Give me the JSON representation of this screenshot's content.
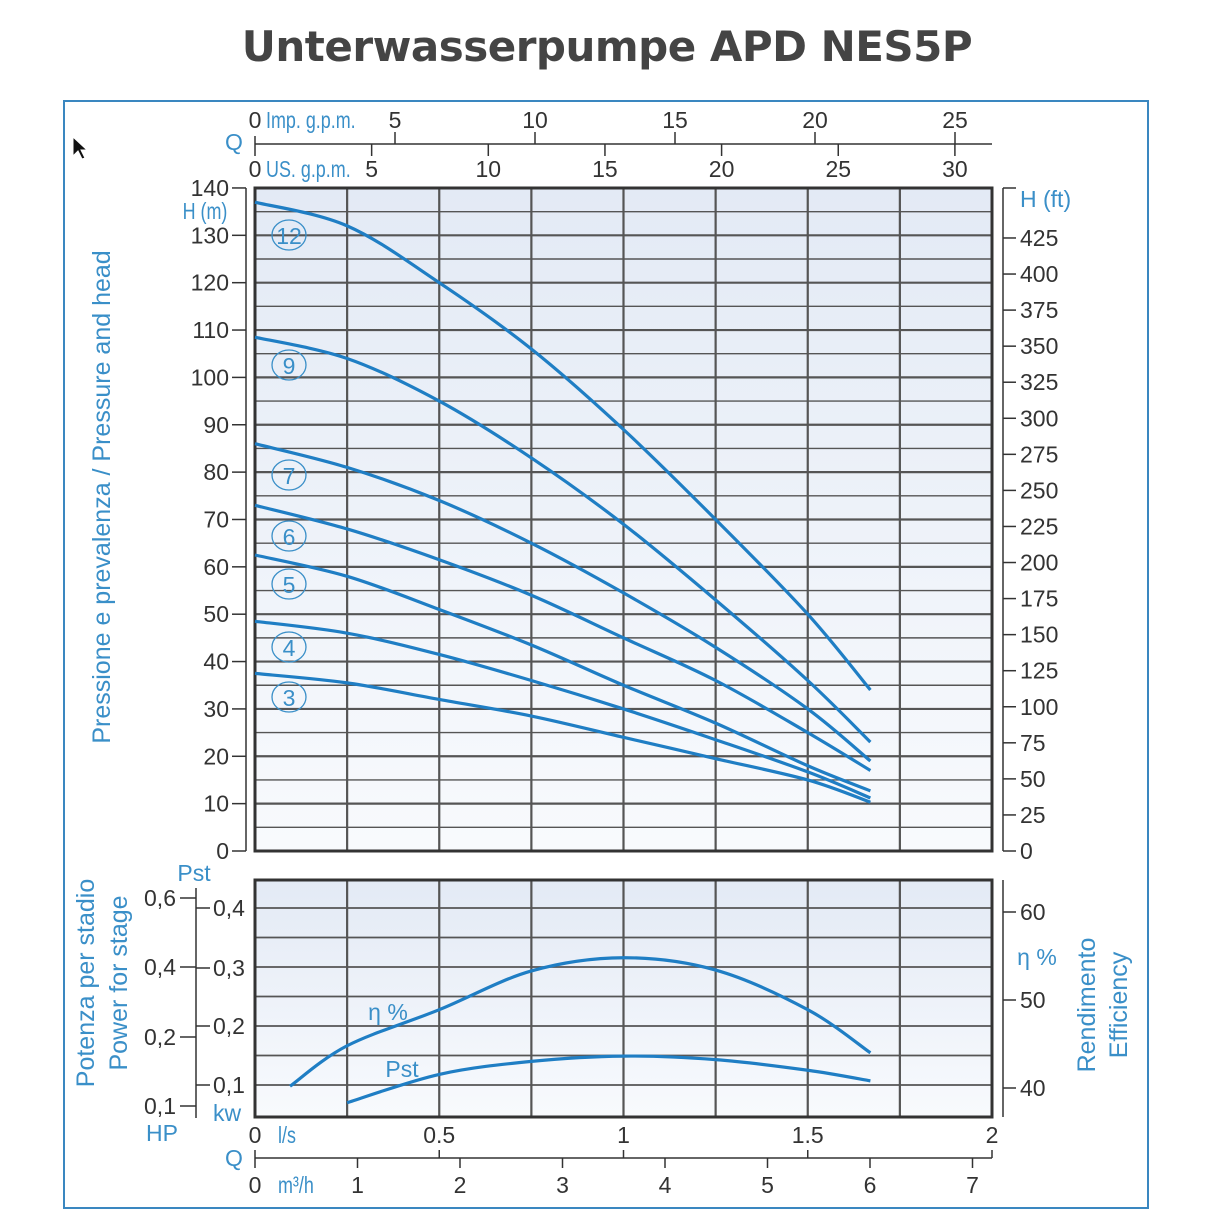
{
  "title": "Unterwasserpumpe APD NES5P",
  "colors": {
    "curve": "#1f7ec4",
    "label": "#3a8fc8",
    "grid": "#555555",
    "frame": "#3a87c0",
    "plot_bg_top": "#e3eaf5",
    "plot_bg_bottom": "#f8fafd"
  },
  "chart_data": [
    {
      "type": "line",
      "title": "",
      "ylabel": "Pressione e prevalenza / Pressure and head",
      "y_unit_label": "H (m)",
      "y2_unit_label": "H (ft)",
      "q_symbol": "Q",
      "x_unit_primary": "l/s",
      "x_unit_imp": "Imp. g.p.m.",
      "x_unit_us": "US. g.p.m.",
      "x_unit_m3h": "m³/h",
      "xlim": [
        0,
        2
      ],
      "ylim": [
        0,
        140
      ],
      "y2lim_ft": [
        0,
        459
      ],
      "grid": true,
      "y_ticks": [
        0,
        10,
        20,
        30,
        40,
        50,
        60,
        70,
        80,
        90,
        100,
        110,
        120,
        130,
        140
      ],
      "y2_ticks": [
        0,
        25,
        50,
        75,
        100,
        125,
        150,
        175,
        200,
        225,
        250,
        275,
        300,
        325,
        350,
        375,
        400,
        425
      ],
      "imp_gpm_ticks": [
        0,
        5,
        10,
        15,
        20,
        25
      ],
      "us_gpm_ticks": [
        0,
        5,
        10,
        15,
        20,
        25,
        30
      ],
      "series": [
        {
          "name": "12",
          "x": [
            0,
            0.25,
            0.5,
            0.75,
            1.0,
            1.25,
            1.5,
            1.67
          ],
          "y": [
            137,
            132,
            120,
            106,
            89,
            70,
            50,
            34
          ]
        },
        {
          "name": "9",
          "x": [
            0,
            0.25,
            0.5,
            0.75,
            1.0,
            1.25,
            1.5,
            1.67
          ],
          "y": [
            108.5,
            104,
            95,
            83,
            69,
            53,
            36,
            23
          ]
        },
        {
          "name": "7",
          "x": [
            0,
            0.25,
            0.5,
            0.75,
            1.0,
            1.25,
            1.5,
            1.67
          ],
          "y": [
            86,
            81,
            74,
            65,
            54.5,
            43,
            30,
            19
          ]
        },
        {
          "name": "6",
          "x": [
            0,
            0.25,
            0.5,
            0.75,
            1.0,
            1.25,
            1.5,
            1.67
          ],
          "y": [
            73,
            68,
            61.5,
            54,
            45,
            36,
            25,
            17
          ]
        },
        {
          "name": "5",
          "x": [
            0,
            0.25,
            0.5,
            0.75,
            1.0,
            1.25,
            1.5,
            1.67
          ],
          "y": [
            62.5,
            58,
            51,
            43.5,
            35,
            27,
            18,
            12.7
          ]
        },
        {
          "name": "4",
          "x": [
            0,
            0.25,
            0.5,
            0.75,
            1.0,
            1.25,
            1.5,
            1.67
          ],
          "y": [
            48.5,
            46,
            41.5,
            36,
            30,
            23.5,
            16.7,
            11.2
          ]
        },
        {
          "name": "3",
          "x": [
            0,
            0.25,
            0.5,
            0.75,
            1.0,
            1.25,
            1.5,
            1.67
          ],
          "y": [
            37.5,
            35.5,
            32,
            28.5,
            24,
            19.5,
            15,
            10.3
          ]
        }
      ]
    },
    {
      "type": "line",
      "title": "",
      "x_unit": "l/s",
      "x_ticks": [
        0,
        0.5,
        1,
        1.5,
        2
      ],
      "m3h_ticks": [
        0,
        1,
        2,
        3,
        4,
        5,
        6,
        7
      ],
      "ylabel_left": [
        "Potenza per stadio",
        "Power for stage"
      ],
      "ylabel_right": [
        "Rendimento",
        "Efficiency"
      ],
      "pst_axis_label": "Pst",
      "kw_unit": "kw",
      "hp_unit": "HP",
      "eta_axis_label": "η %",
      "kw_ticks": [
        "0,1",
        "0,2",
        "0,3",
        "0,4"
      ],
      "hp_ticks": [
        "0,1",
        "0,2",
        "0,4",
        "0,6"
      ],
      "eta_ticks": [
        40,
        50,
        60
      ],
      "grid": true,
      "series": [
        {
          "name": "η %",
          "axis": "right",
          "x": [
            0.095,
            0.25,
            0.5,
            0.75,
            1.0,
            1.25,
            1.5,
            1.67
          ],
          "y": [
            40.2,
            44.8,
            48.9,
            53.3,
            54.8,
            53.4,
            48.9,
            44
          ]
        },
        {
          "name": "Pst",
          "axis": "left_kw",
          "x": [
            0.25,
            0.5,
            0.75,
            1.0,
            1.25,
            1.5,
            1.67
          ],
          "y": [
            0.07,
            0.118,
            0.14,
            0.149,
            0.143,
            0.125,
            0.107
          ]
        }
      ]
    }
  ]
}
